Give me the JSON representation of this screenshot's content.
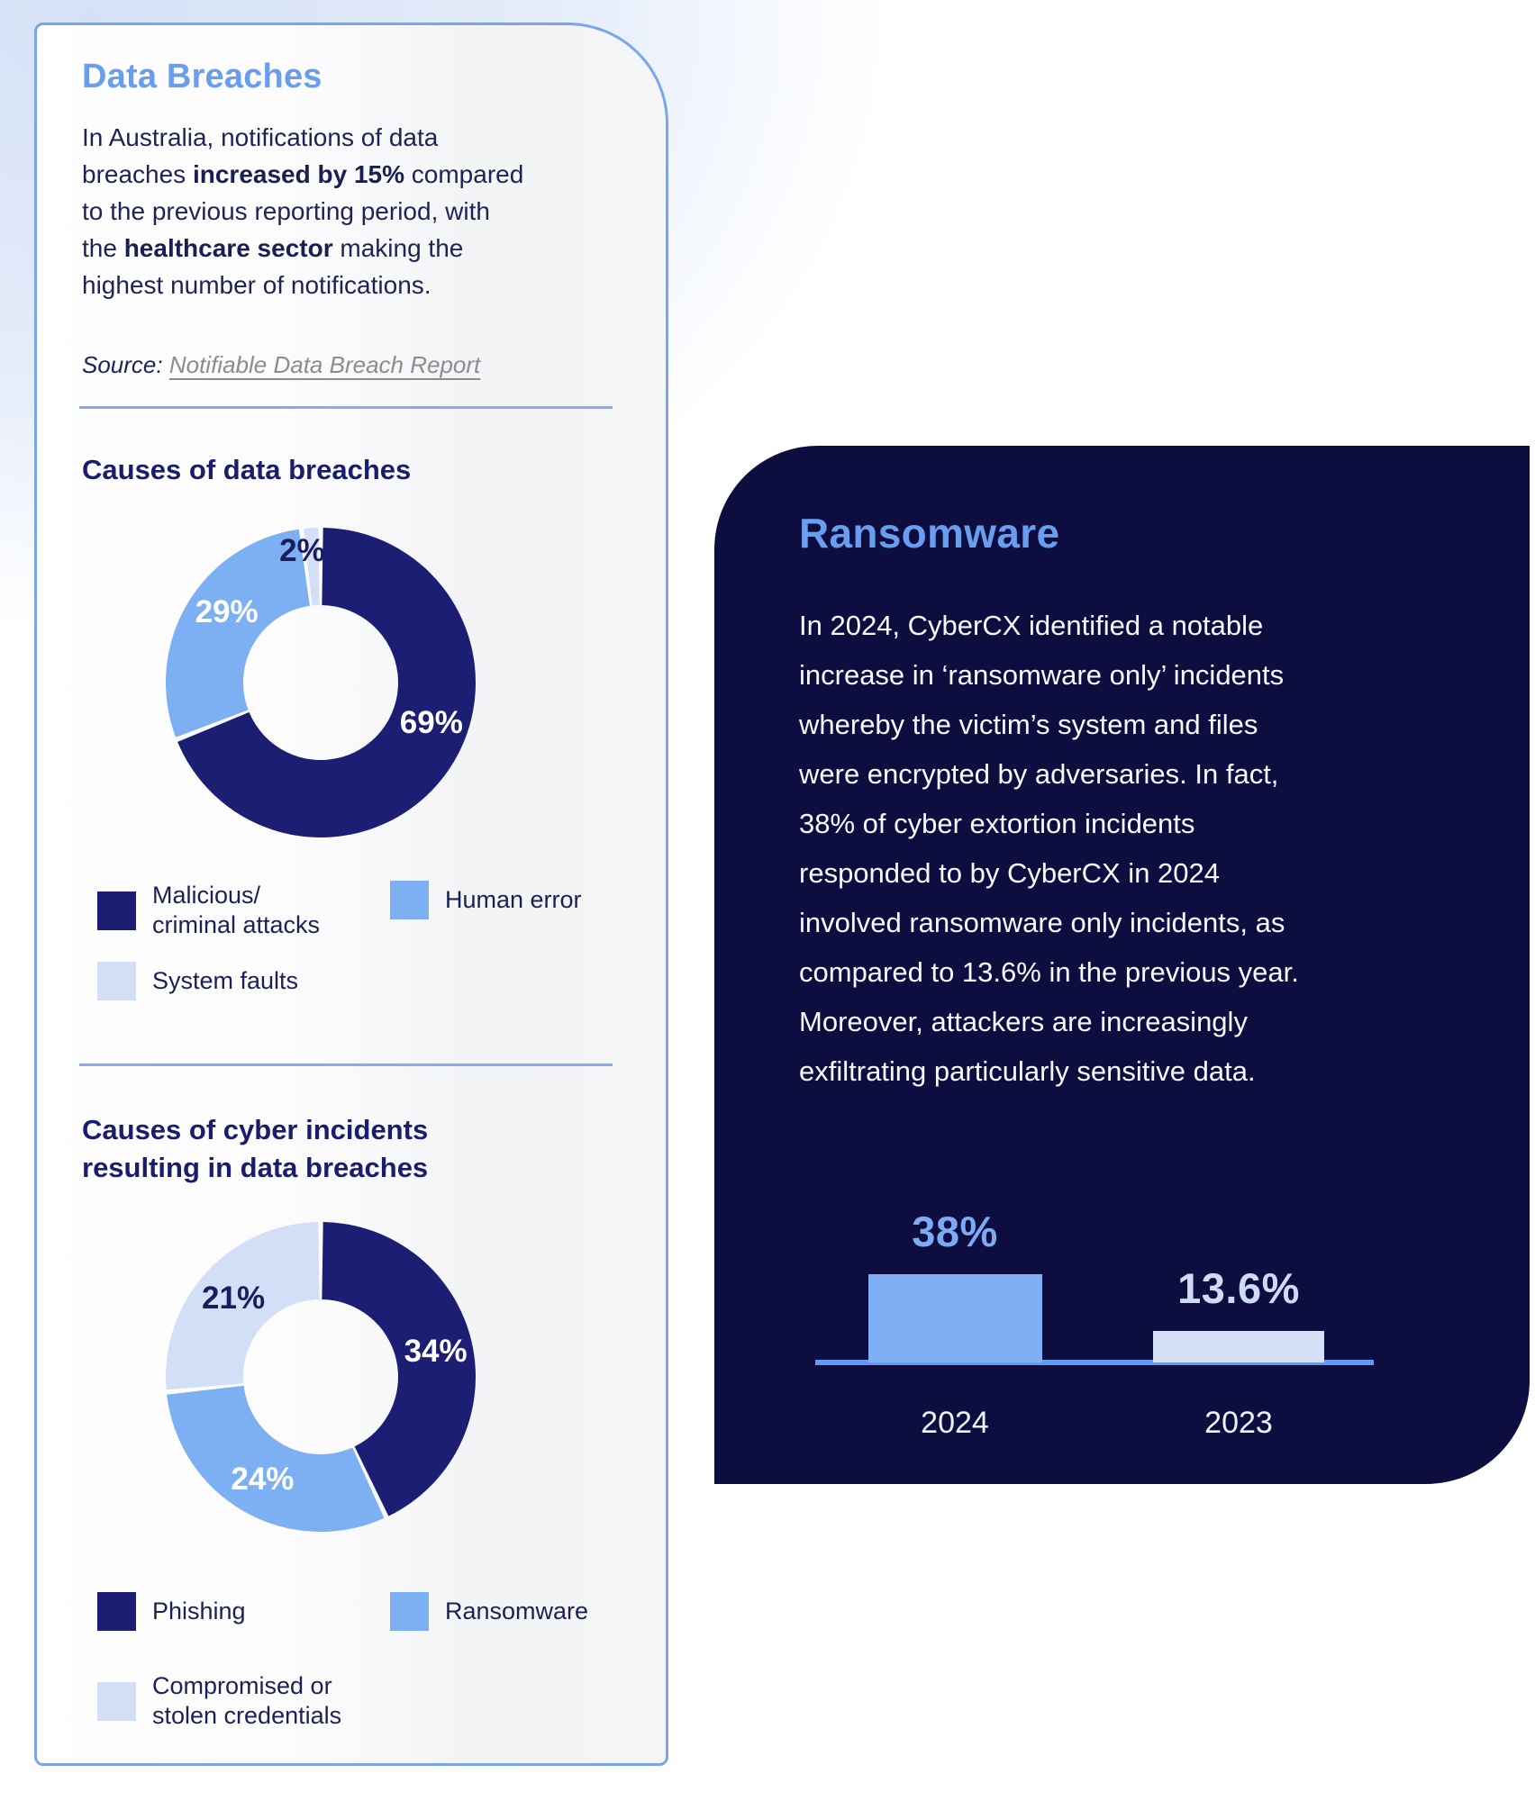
{
  "colors": {
    "page_tint": "#d5e1f6",
    "card_border": "#7aa4ee",
    "accent_blue": "#689df0",
    "heading_navy": "#191d6d",
    "body_navy": "#1e2356",
    "source_link_gray": "#8b8b90",
    "dark_card_bg": "#0d0e3f",
    "donut_navy": "#1b1e72",
    "donut_light_blue": "#7daff3",
    "donut_pale_blue": "#d3dff7"
  },
  "left_card": {
    "title": "Data Breaches",
    "intro_segments": [
      {
        "text": "In Australia, notifications of data\nbreaches ",
        "bold": false
      },
      {
        "text": "increased by 15%",
        "bold": true
      },
      {
        "text": " compared\nto the previous reporting period, with\nthe ",
        "bold": false
      },
      {
        "text": "healthcare sector",
        "bold": true
      },
      {
        "text": " making the\nhighest number of notifications.",
        "bold": false
      }
    ],
    "source_label": "Source:",
    "source_link": "Notifiable Data Breach Report"
  },
  "right_card": {
    "title": "Ransomware",
    "body": "In 2024, CyberCX identified a notable\nincrease in ‘ransomware only’ incidents\nwhereby the victim’s system and files\nwere encrypted by adversaries. In fact,\n38% of cyber extortion incidents\nresponded to by CyberCX in 2024\ninvolved ransomware only incidents, as\ncompared to 13.6% in the previous year.\nMoreover, attackers are increasingly\nexfiltrating particularly sensitive data."
  },
  "chart_data": [
    {
      "id": "causes-of-data-breaches",
      "type": "pie",
      "subtype": "donut",
      "title": "Causes of data breaches",
      "categories": [
        "Malicious/criminal attacks",
        "Human error",
        "System faults"
      ],
      "values": [
        69,
        29,
        2
      ],
      "unit": "percent",
      "legend_position": "bottom",
      "segments": [
        {
          "label": "Malicious/\ncriminal attacks",
          "value": 69,
          "display": "69%",
          "color": "#1b1e72",
          "label_color": "#ffffff",
          "label_angle": 110
        },
        {
          "label": "Human error",
          "value": 29,
          "display": "29%",
          "color": "#7daff3",
          "label_color": "#ffffff",
          "label_angle": 307
        },
        {
          "label": "System faults",
          "value": 2,
          "display": "2%",
          "color": "#d3dff7",
          "label_color": "#1a1e5e",
          "label_angle": 352,
          "label_r": 0.86
        }
      ]
    },
    {
      "id": "causes-of-cyber-incidents",
      "type": "pie",
      "subtype": "donut",
      "title": "Causes of cyber incidents\nresulting in data breaches",
      "categories": [
        "Phishing",
        "Ransomware",
        "Compromised or stolen credentials"
      ],
      "values": [
        34,
        24,
        21
      ],
      "unit": "percent",
      "legend_position": "bottom",
      "segments": [
        {
          "label": "Phishing",
          "value": 34,
          "display": "34%",
          "color": "#1b1e72",
          "label_color": "#ffffff"
        },
        {
          "label": "Ransomware",
          "value": 24,
          "display": "24%",
          "color": "#7daff3",
          "label_color": "#ffffff"
        },
        {
          "label": "Compromised or\nstolen credentials",
          "value": 21,
          "display": "21%",
          "color": "#d3dff7",
          "label_color": "#1a1e5e"
        }
      ]
    },
    {
      "id": "ransomware-only-share",
      "type": "bar",
      "title": "",
      "categories": [
        "2024",
        "2023"
      ],
      "values": [
        38,
        13.6
      ],
      "unit": "percent",
      "ylim": [
        0,
        40
      ],
      "grid": false,
      "axis_color": "#5e9cf3",
      "bars": [
        {
          "label": "2024",
          "value": 38,
          "display": "38%",
          "color": "#7fb0f5",
          "label_color": "#7cabf4"
        },
        {
          "label": "2023",
          "value": 13.6,
          "display": "13.6%",
          "color": "#d6e1f8",
          "label_color": "#cedbf7"
        }
      ]
    }
  ]
}
